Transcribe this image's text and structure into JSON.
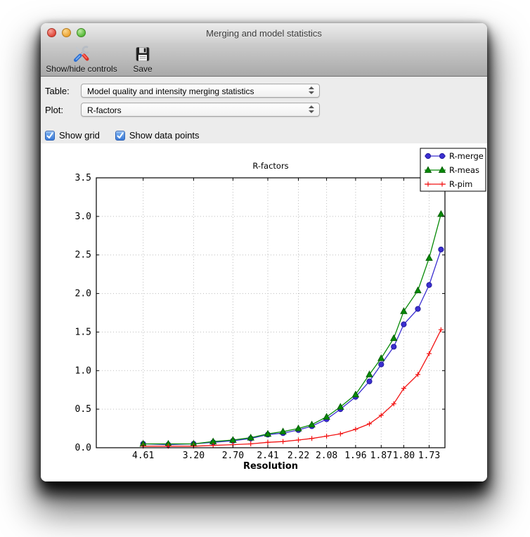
{
  "window": {
    "title": "Merging and model statistics"
  },
  "toolbar": {
    "buttons": [
      {
        "label": "Show/hide controls",
        "icon": "tools-icon"
      },
      {
        "label": "Save",
        "icon": "save-icon"
      }
    ]
  },
  "controls": {
    "table_label": "Table:",
    "table_value": "Model quality and intensity merging statistics",
    "plot_label": "Plot:",
    "plot_value": "R-factors",
    "checkboxes": [
      {
        "label": "Show grid",
        "checked": true
      },
      {
        "label": "Show data points",
        "checked": true
      }
    ]
  },
  "chart_data": {
    "type": "line",
    "title": "R-factors",
    "xlabel": "Resolution",
    "ylabel": "",
    "ylim": [
      0.0,
      3.5
    ],
    "ytick_step": 0.5,
    "x_scale": "1-over-d-squared",
    "xlim_inv_d2": [
      0.0,
      0.35
    ],
    "grid": true,
    "show_data_points": true,
    "legend_position": "upper right",
    "x_resolutions": [
      4.61,
      3.72,
      3.2,
      2.92,
      2.7,
      2.54,
      2.41,
      2.31,
      2.22,
      2.15,
      2.08,
      2.02,
      1.96,
      1.91,
      1.87,
      1.83,
      1.8,
      1.76,
      1.73,
      1.7
    ],
    "x_tick_indices": [
      0,
      2,
      4,
      6,
      8,
      10,
      12,
      14,
      16,
      18
    ],
    "x_tick_labels": [
      "4.61",
      "3.20",
      "2.70",
      "2.41",
      "2.22",
      "2.08",
      "1.96",
      "1.87",
      "1.80",
      "1.73"
    ],
    "series": [
      {
        "name": "R-merge",
        "marker": "circle",
        "color": "#3b2fd0",
        "edge_color": "#241c9e",
        "values": [
          0.05,
          0.04,
          0.05,
          0.07,
          0.09,
          0.12,
          0.17,
          0.19,
          0.23,
          0.28,
          0.37,
          0.5,
          0.66,
          0.86,
          1.08,
          1.31,
          1.6,
          1.8,
          2.11,
          2.57
        ]
      },
      {
        "name": "R-meas",
        "marker": "triangle",
        "color": "#078a07",
        "edge_color": "#045e04",
        "values": [
          0.05,
          0.05,
          0.05,
          0.08,
          0.1,
          0.13,
          0.18,
          0.21,
          0.25,
          0.3,
          0.4,
          0.53,
          0.69,
          0.95,
          1.16,
          1.42,
          1.77,
          2.04,
          2.46,
          3.03
        ]
      },
      {
        "name": "R-pim",
        "marker": "plus",
        "color": "#f21414",
        "edge_color": "#f21414",
        "values": [
          0.02,
          0.02,
          0.02,
          0.03,
          0.04,
          0.05,
          0.07,
          0.08,
          0.1,
          0.12,
          0.15,
          0.18,
          0.24,
          0.31,
          0.42,
          0.57,
          0.77,
          0.95,
          1.22,
          1.53
        ]
      }
    ]
  }
}
